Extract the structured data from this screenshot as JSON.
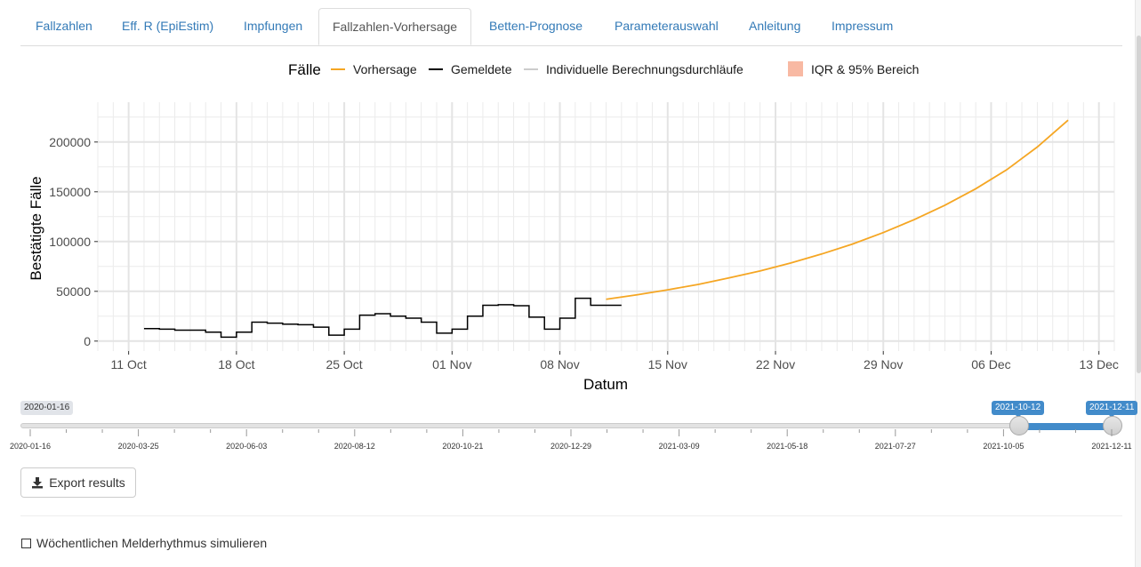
{
  "tabs": [
    {
      "label": "Fallzahlen"
    },
    {
      "label": "Eff. R (EpiEstim)"
    },
    {
      "label": "Impfungen"
    },
    {
      "label": "Fallzahlen-Vorhersage",
      "active": true
    },
    {
      "label": "Betten-Prognose"
    },
    {
      "label": "Parameterauswahl"
    },
    {
      "label": "Anleitung"
    },
    {
      "label": "Impressum"
    }
  ],
  "chart_data": {
    "type": "line",
    "legend_title": "Fälle",
    "legend_position": "top",
    "legend": [
      {
        "name": "Vorhersage",
        "color": "#f5a623",
        "kind": "line"
      },
      {
        "name": "Gemeldete",
        "color": "#000000",
        "kind": "line"
      },
      {
        "name": "Individuelle Berechnungsdurchläufe",
        "color": "#cccccc",
        "kind": "line"
      },
      {
        "name": "IQR & 95% Bereich",
        "color": "#f8b9a3",
        "kind": "box"
      }
    ],
    "xlabel": "Datum",
    "ylabel": "Bestätigte Fälle",
    "grid": true,
    "x_start": "2020-10-09",
    "x_end": "2020-12-14",
    "x_ticks": [
      {
        "date": "2020-10-11",
        "label": "11 Oct"
      },
      {
        "date": "2020-10-18",
        "label": "18 Oct"
      },
      {
        "date": "2020-10-25",
        "label": "25 Oct"
      },
      {
        "date": "2020-11-01",
        "label": "01 Nov"
      },
      {
        "date": "2020-11-08",
        "label": "08 Nov"
      },
      {
        "date": "2020-11-15",
        "label": "15 Nov"
      },
      {
        "date": "2020-11-22",
        "label": "22 Nov"
      },
      {
        "date": "2020-11-29",
        "label": "29 Nov"
      },
      {
        "date": "2020-12-06",
        "label": "06 Dec"
      },
      {
        "date": "2020-12-13",
        "label": "13 Dec"
      }
    ],
    "ylim": [
      -10000,
      240000
    ],
    "y_ticks": [
      0,
      50000,
      100000,
      150000,
      200000
    ],
    "series": [
      {
        "name": "Gemeldete",
        "color": "#000000",
        "step": true,
        "x": [
          "2020-10-12",
          "2020-10-13",
          "2020-10-14",
          "2020-10-15",
          "2020-10-16",
          "2020-10-17",
          "2020-10-18",
          "2020-10-19",
          "2020-10-20",
          "2020-10-21",
          "2020-10-22",
          "2020-10-23",
          "2020-10-24",
          "2020-10-25",
          "2020-10-26",
          "2020-10-27",
          "2020-10-28",
          "2020-10-29",
          "2020-10-30",
          "2020-10-31",
          "2020-11-01",
          "2020-11-02",
          "2020-11-03",
          "2020-11-04",
          "2020-11-05",
          "2020-11-06",
          "2020-11-07",
          "2020-11-08",
          "2020-11-09",
          "2020-11-10",
          "2020-11-11"
        ],
        "values": [
          12500,
          12000,
          11000,
          11000,
          9000,
          4000,
          9000,
          19000,
          18000,
          17000,
          16500,
          14000,
          6000,
          12000,
          26000,
          27500,
          25000,
          23000,
          19000,
          8000,
          12000,
          25000,
          36000,
          36500,
          35500,
          24000,
          12000,
          23000,
          43000,
          36000,
          36000
        ]
      },
      {
        "name": "Vorhersage",
        "color": "#f5a623",
        "step": false,
        "x": [
          "2020-11-11",
          "2020-11-13",
          "2020-11-15",
          "2020-11-17",
          "2020-11-19",
          "2020-11-21",
          "2020-11-23",
          "2020-11-25",
          "2020-11-27",
          "2020-11-29",
          "2020-12-01",
          "2020-12-03",
          "2020-12-05",
          "2020-12-07",
          "2020-12-09",
          "2020-12-11"
        ],
        "values": [
          42000,
          46500,
          51500,
          57000,
          63500,
          70500,
          78500,
          87500,
          97500,
          109000,
          122000,
          136500,
          153000,
          172000,
          195000,
          222000
        ]
      }
    ]
  },
  "slider": {
    "min_label": "2020-01-16",
    "from_label": "2021-10-12",
    "to_label": "2021-12-11",
    "from_fraction": 0.9131,
    "to_fraction": 1.0,
    "grid_labels": [
      "2020-01-16",
      "2020-03-25",
      "2020-06-03",
      "2020-08-12",
      "2020-10-21",
      "2020-12-29",
      "2021-03-09",
      "2021-05-18",
      "2021-07-27",
      "2021-10-05",
      "2021-12-11"
    ]
  },
  "export_button": {
    "label": "Export results",
    "icon": "download-icon"
  },
  "checkbox": {
    "label": "Wöchentlichen Melderhythmus simulieren",
    "checked": false
  }
}
